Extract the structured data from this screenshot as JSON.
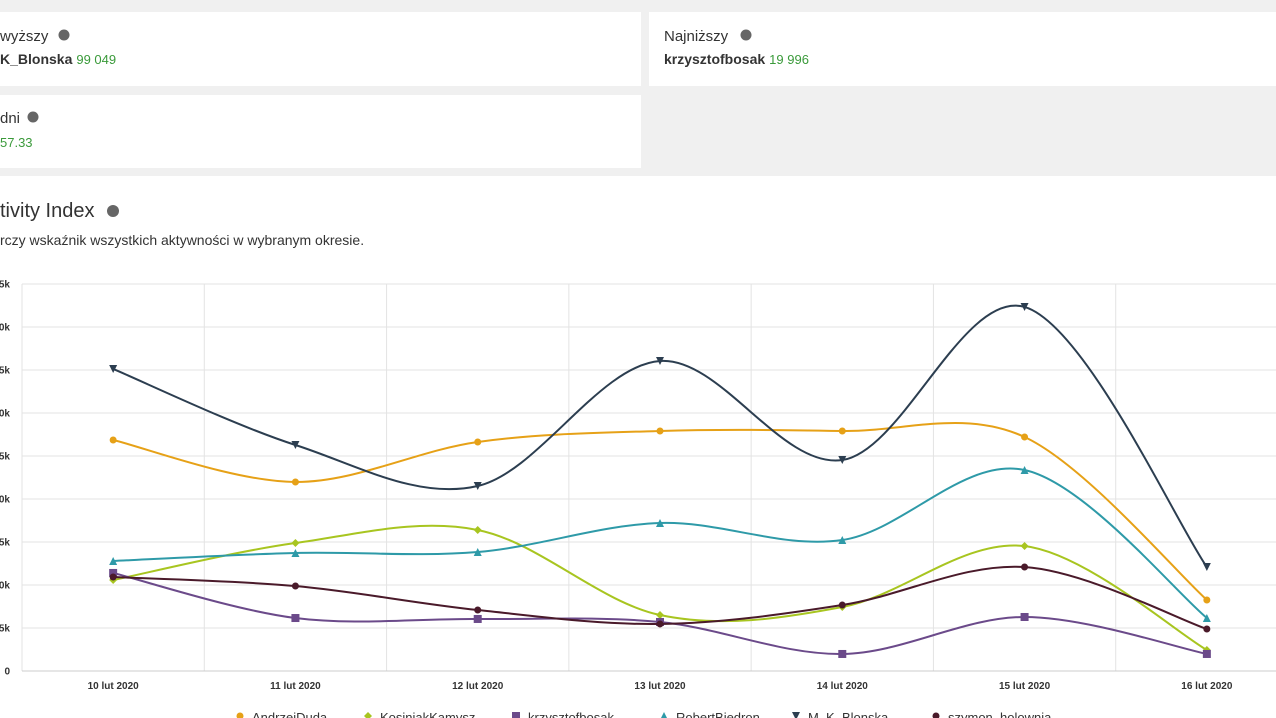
{
  "cards": [
    {
      "label": "wyższy",
      "name": "K_Blonska",
      "value": "99 049"
    },
    {
      "label": "Najniższy",
      "name": "krzysztofbosak",
      "value": "19 996"
    },
    {
      "label": "dni",
      "value": "57.33"
    }
  ],
  "chart_data": {
    "type": "line",
    "title": "tivity Index",
    "subtitle": "rczy wskaźnik wszystkich aktywności w wybranym okresie.",
    "categories": [
      "10 lut 2020",
      "11 lut 2020",
      "12 lut 2020",
      "13 lut 2020",
      "14 lut 2020",
      "15 lut 2020",
      "16 lut 2020"
    ],
    "ylim": [
      0,
      45000
    ],
    "yticks": [
      0,
      {
        "value": 5000,
        "label": "5k"
      },
      {
        "value": 10000,
        "label": "0k"
      },
      {
        "value": 15000,
        "label": "5k"
      },
      {
        "value": 20000,
        "label": "0k"
      },
      {
        "value": 25000,
        "label": "5k"
      },
      {
        "value": 30000,
        "label": "0k"
      },
      {
        "value": 35000,
        "label": "5k"
      },
      {
        "value": 40000,
        "label": "0k"
      },
      {
        "value": 45000,
        "label": "5k"
      }
    ],
    "grid": true,
    "series": [
      {
        "name": "AndrzejDuda",
        "color": "#e6a117",
        "values": [
          26860,
          21980,
          26630,
          27910,
          27910,
          27210,
          8260
        ]
      },
      {
        "name": "KosiniakKamysz",
        "color": "#a8c520",
        "values": [
          10580,
          14880,
          16400,
          6510,
          7440,
          14530,
          2440
        ]
      },
      {
        "name": "krzysztofbosak",
        "color": "#6b4a8a",
        "values": [
          11400,
          6160,
          6050,
          5700,
          1980,
          6280,
          1980
        ]
      },
      {
        "name": "RobertBiedron",
        "color": "#2e9aa8",
        "values": [
          12790,
          13720,
          13840,
          17210,
          15230,
          23370,
          6160
        ]
      },
      {
        "name": "M_K_Blonska",
        "color": "#2c3e50",
        "values": [
          35120,
          26280,
          21510,
          36050,
          24530,
          42330,
          12090
        ]
      },
      {
        "name": "szymon_holownia",
        "color": "#4a1a2a",
        "values": [
          10930,
          9880,
          7090,
          5470,
          7670,
          12090,
          4880
        ]
      }
    ]
  }
}
